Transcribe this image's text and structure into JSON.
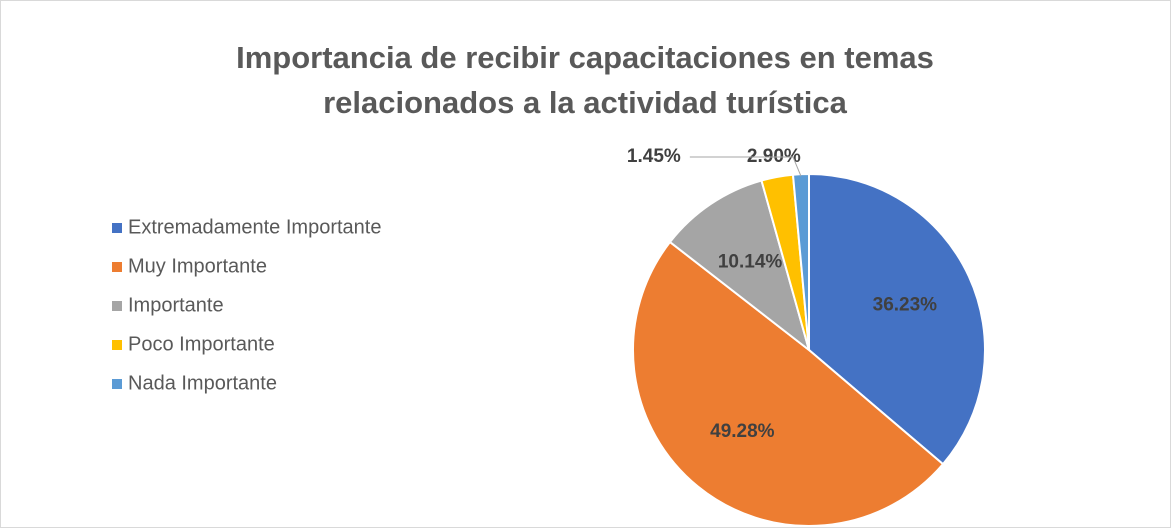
{
  "chart_data": {
    "type": "pie",
    "title": [
      "Importancia de recibir capacitaciones en temas",
      "relacionados a la actividad turística"
    ],
    "categories": [
      "Extremadamente Importante",
      "Muy Importante",
      "Importante",
      "Poco Importante",
      "Nada Importante"
    ],
    "values": [
      36.23,
      49.28,
      10.14,
      2.9,
      1.45
    ],
    "value_labels": [
      "36.23%",
      "49.28%",
      "10.14%",
      "2.90%",
      "1.45%"
    ],
    "colors": [
      "#4472c4",
      "#ed7d31",
      "#a5a5a5",
      "#ffc000",
      "#5b9bd5"
    ],
    "legend": "left"
  }
}
